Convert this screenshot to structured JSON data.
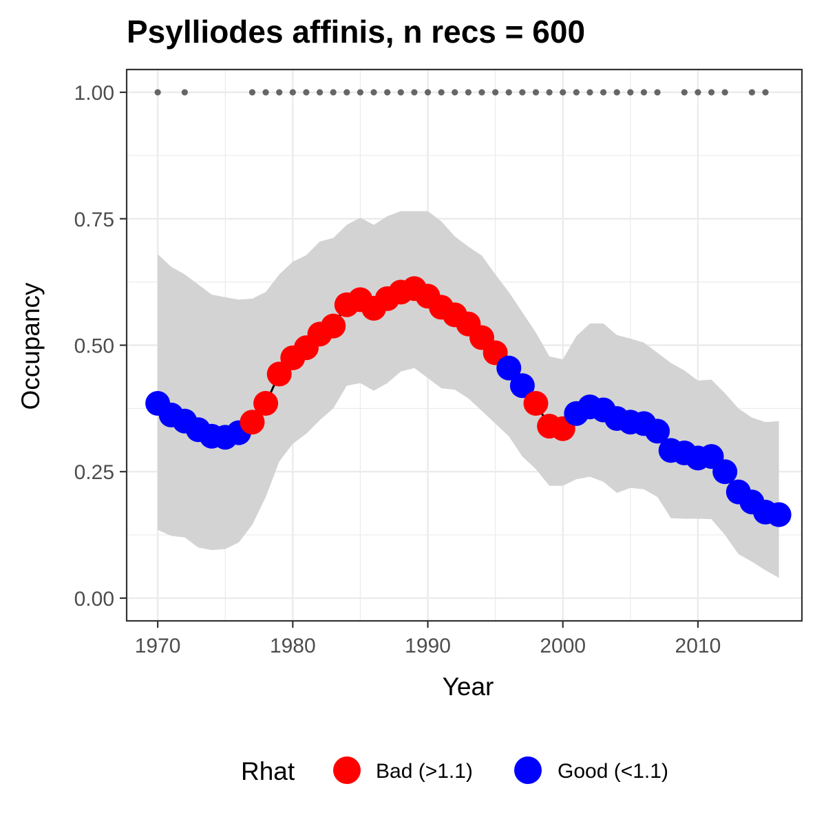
{
  "chart_data": {
    "type": "line",
    "title": "Psylliodes affinis, n recs = 600",
    "xlabel": "Year",
    "ylabel": "Occupancy",
    "xlim": [
      1967.7,
      2017.7
    ],
    "ylim": [
      -0.045,
      1.045
    ],
    "x_ticks": [
      1970,
      1980,
      1990,
      2000,
      2010
    ],
    "x_tick_labels": [
      "1970",
      "1980",
      "1990",
      "2000",
      "2010"
    ],
    "y_ticks": [
      0.0,
      0.25,
      0.5,
      0.75,
      1.0
    ],
    "y_tick_labels": [
      "0.00",
      "0.25",
      "0.50",
      "0.75",
      "1.00"
    ],
    "grid": true,
    "legend_position": "bottom",
    "legend": {
      "title": "Rhat",
      "entries": [
        {
          "label": "Bad (>1.1)",
          "color": "#ff0000"
        },
        {
          "label": "Good (<1.1)",
          "color": "#0000ff"
        }
      ]
    },
    "colors": {
      "Bad": "#ff0000",
      "Good": "#0000ff",
      "ribbon": "#d3d3d3",
      "line": "#000000",
      "records": "#666666"
    },
    "x": [
      1970,
      1971,
      1972,
      1973,
      1974,
      1975,
      1976,
      1977,
      1978,
      1979,
      1980,
      1981,
      1982,
      1983,
      1984,
      1985,
      1986,
      1987,
      1988,
      1989,
      1990,
      1991,
      1992,
      1993,
      1994,
      1995,
      1996,
      1997,
      1998,
      1999,
      2000,
      2001,
      2002,
      2003,
      2004,
      2005,
      2006,
      2007,
      2008,
      2009,
      2010,
      2011,
      2012,
      2013,
      2014,
      2015,
      2016
    ],
    "occupancy": [
      0.385,
      0.362,
      0.35,
      0.333,
      0.32,
      0.318,
      0.327,
      0.348,
      0.385,
      0.443,
      0.475,
      0.495,
      0.522,
      0.538,
      0.58,
      0.59,
      0.573,
      0.592,
      0.605,
      0.612,
      0.597,
      0.575,
      0.56,
      0.542,
      0.515,
      0.485,
      0.455,
      0.42,
      0.385,
      0.34,
      0.335,
      0.365,
      0.378,
      0.372,
      0.355,
      0.348,
      0.345,
      0.33,
      0.292,
      0.287,
      0.277,
      0.28,
      0.25,
      0.21,
      0.19,
      0.17,
      0.165
    ],
    "lower_ci": [
      0.135,
      0.123,
      0.12,
      0.1,
      0.095,
      0.097,
      0.11,
      0.145,
      0.2,
      0.27,
      0.305,
      0.325,
      0.352,
      0.375,
      0.42,
      0.425,
      0.41,
      0.425,
      0.448,
      0.455,
      0.435,
      0.415,
      0.412,
      0.395,
      0.37,
      0.345,
      0.32,
      0.28,
      0.255,
      0.222,
      0.222,
      0.235,
      0.24,
      0.23,
      0.208,
      0.218,
      0.215,
      0.2,
      0.158,
      0.157,
      0.157,
      0.156,
      0.125,
      0.087,
      0.072,
      0.055,
      0.04
    ],
    "upper_ci": [
      0.68,
      0.655,
      0.64,
      0.62,
      0.6,
      0.595,
      0.59,
      0.592,
      0.605,
      0.64,
      0.665,
      0.678,
      0.705,
      0.712,
      0.738,
      0.752,
      0.738,
      0.755,
      0.765,
      0.765,
      0.765,
      0.745,
      0.715,
      0.695,
      0.677,
      0.64,
      0.605,
      0.565,
      0.525,
      0.478,
      0.472,
      0.518,
      0.543,
      0.543,
      0.52,
      0.513,
      0.505,
      0.485,
      0.465,
      0.45,
      0.43,
      0.432,
      0.405,
      0.375,
      0.357,
      0.348,
      0.35
    ],
    "rhat": [
      "Good",
      "Good",
      "Good",
      "Good",
      "Good",
      "Good",
      "Good",
      "Bad",
      "Bad",
      "Bad",
      "Bad",
      "Bad",
      "Bad",
      "Bad",
      "Bad",
      "Bad",
      "Bad",
      "Bad",
      "Bad",
      "Bad",
      "Bad",
      "Bad",
      "Bad",
      "Bad",
      "Bad",
      "Bad",
      "Good",
      "Good",
      "Bad",
      "Bad",
      "Bad",
      "Good",
      "Good",
      "Good",
      "Good",
      "Good",
      "Good",
      "Good",
      "Good",
      "Good",
      "Good",
      "Good",
      "Good",
      "Good",
      "Good",
      "Good",
      "Good"
    ],
    "record_years": [
      1970,
      1972,
      1977,
      1978,
      1979,
      1980,
      1981,
      1982,
      1983,
      1984,
      1985,
      1986,
      1987,
      1988,
      1989,
      1990,
      1991,
      1992,
      1993,
      1994,
      1995,
      1996,
      1997,
      1998,
      1999,
      2000,
      2001,
      2002,
      2003,
      2004,
      2005,
      2006,
      2007,
      2009,
      2010,
      2011,
      2012,
      2014,
      2015
    ],
    "record_value": 1.0
  }
}
